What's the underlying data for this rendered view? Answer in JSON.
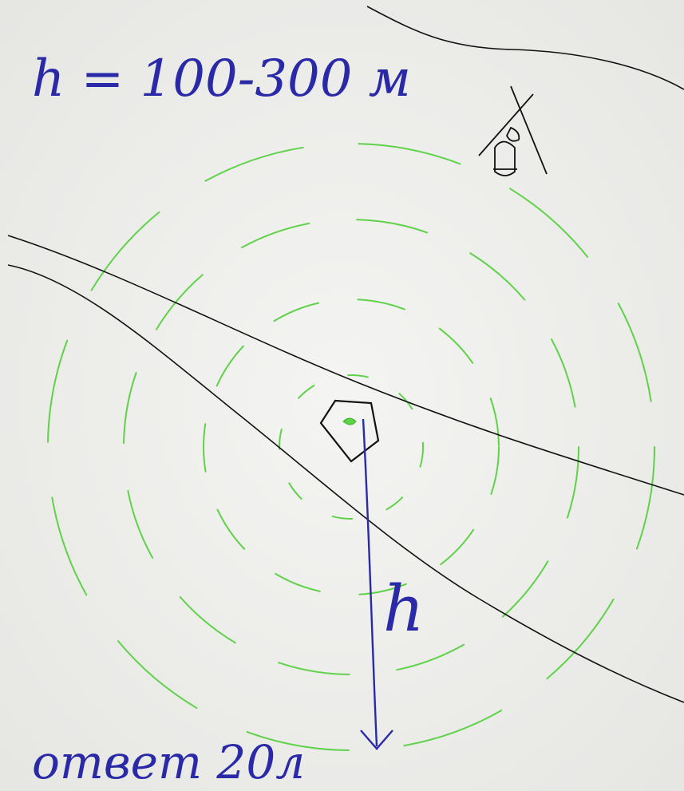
{
  "annotations": {
    "height_range": "h = 100-300 м",
    "arrow_label": "h",
    "answer": "ответ 20л"
  }
}
